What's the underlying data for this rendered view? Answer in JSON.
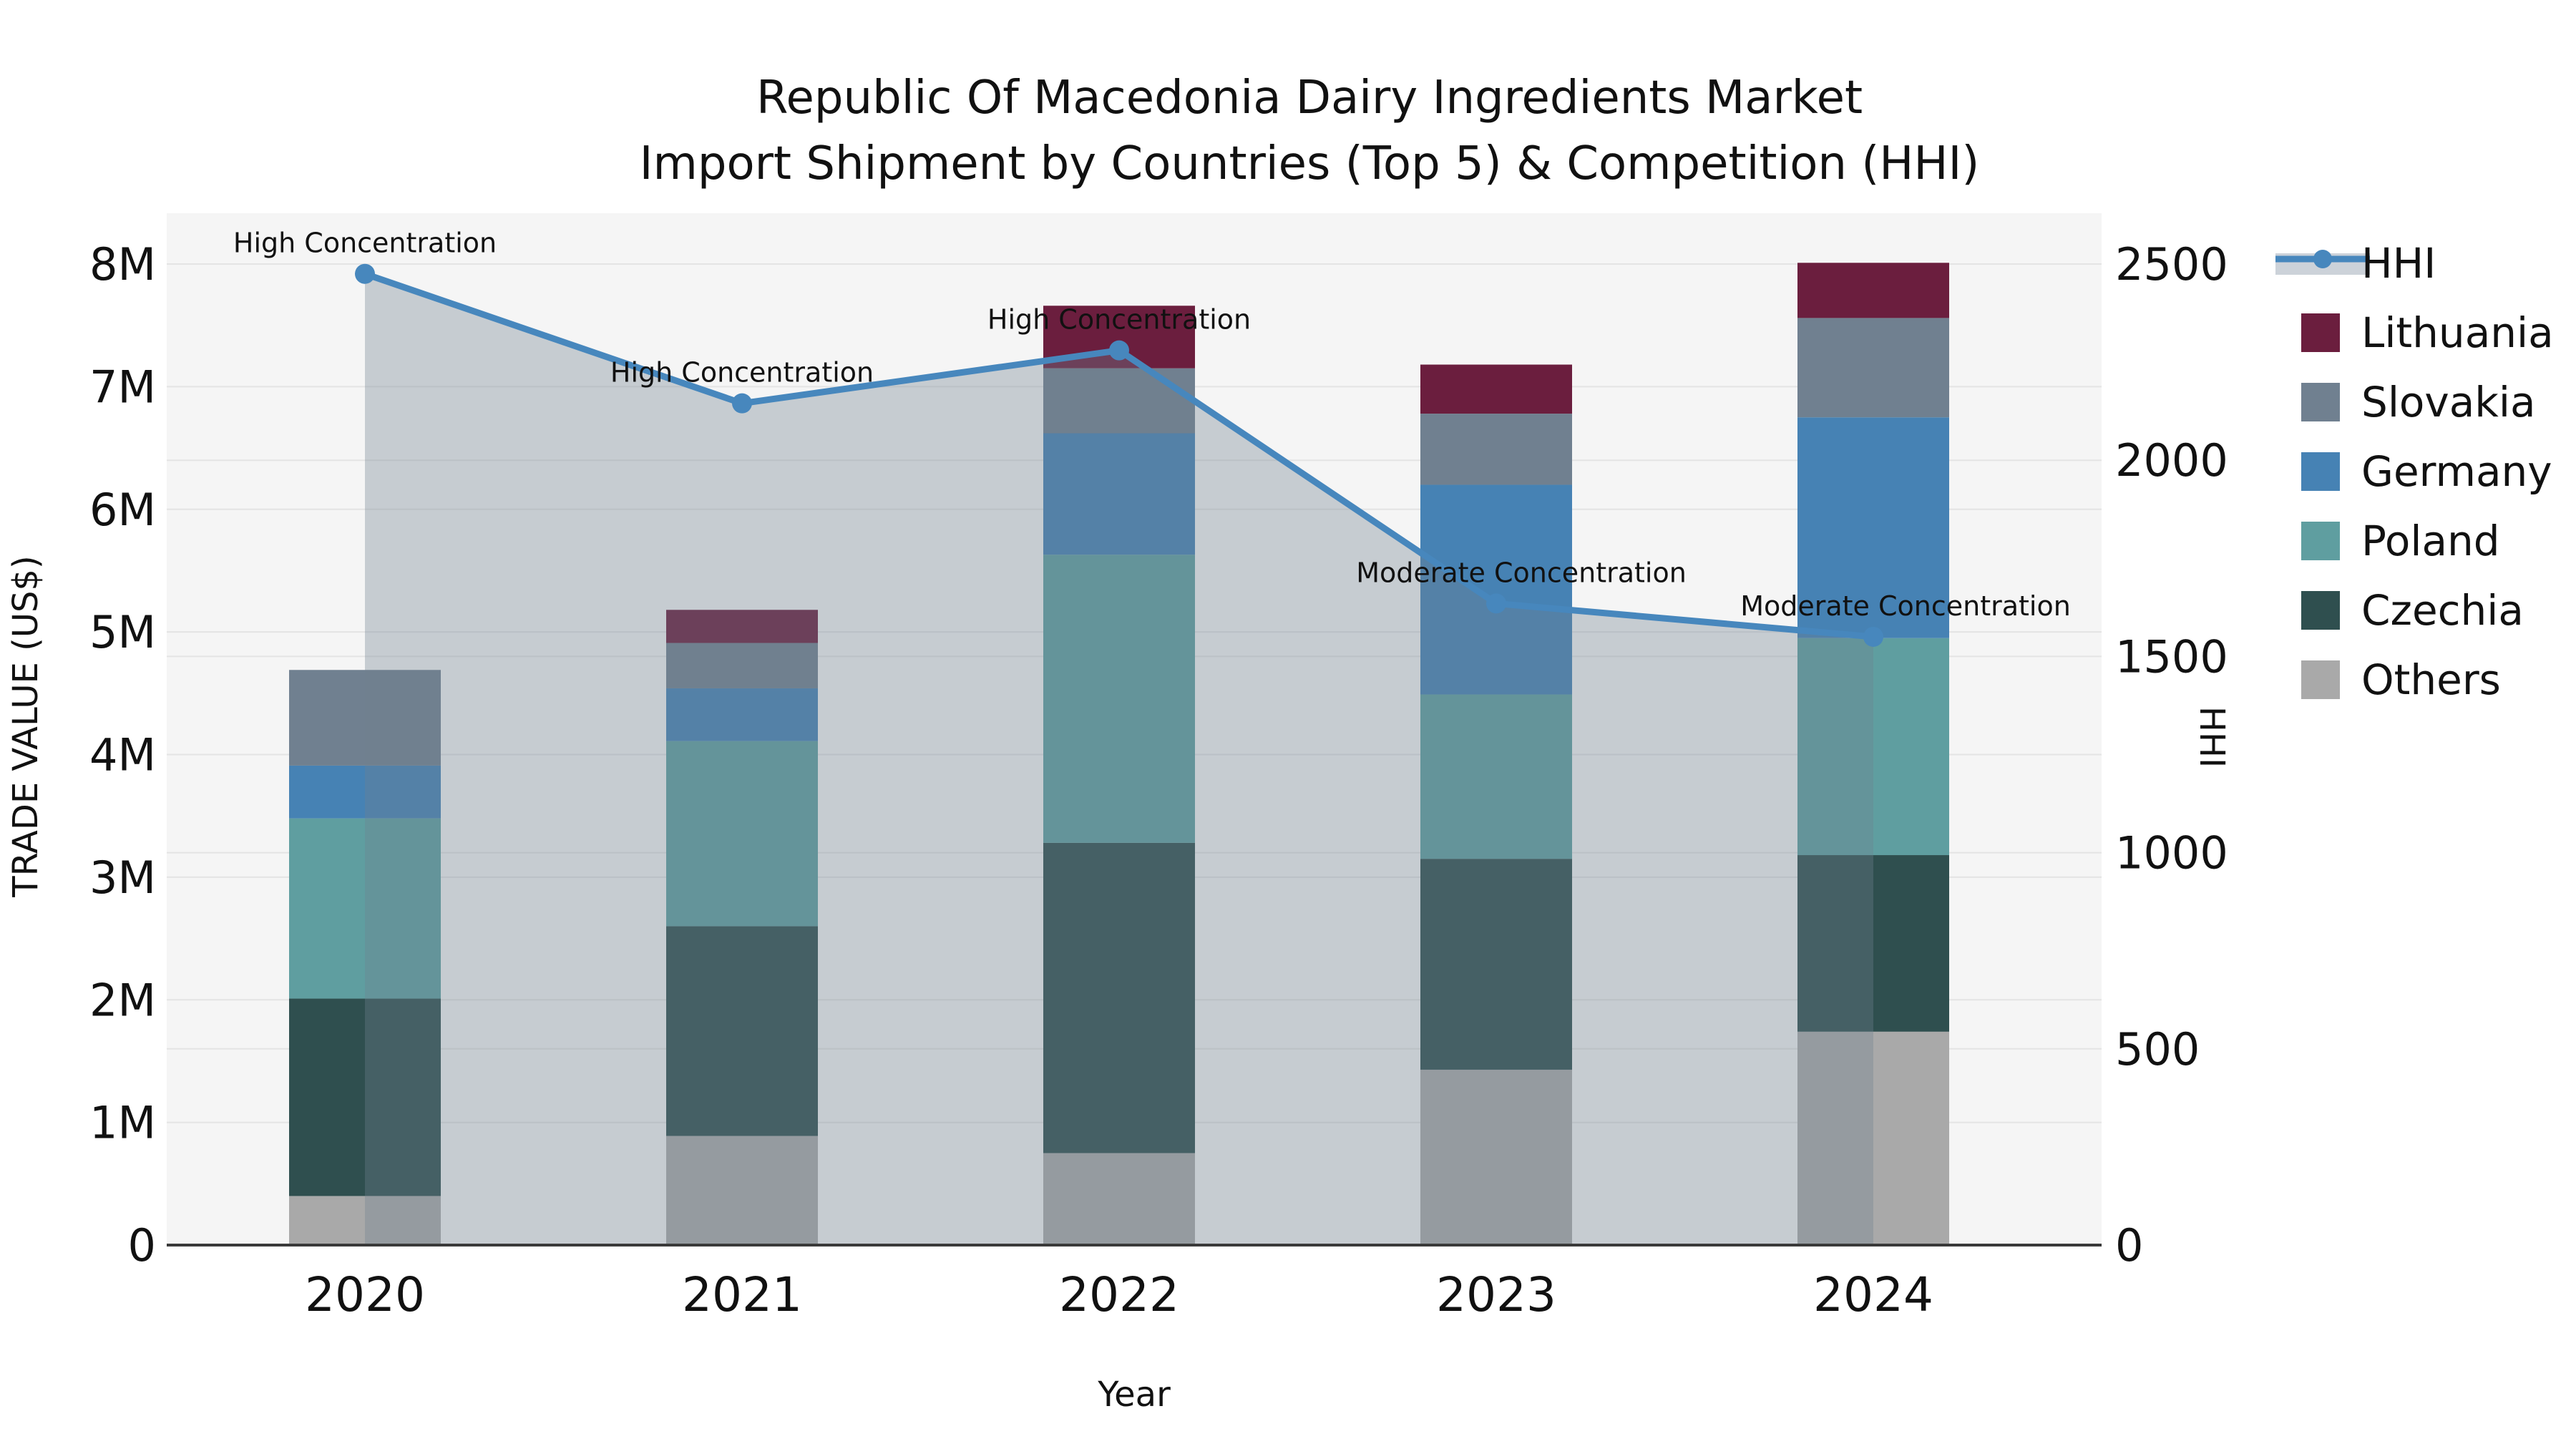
{
  "title": {
    "line1": "Republic Of Macedonia Dairy Ingredients Market",
    "line2": "Import Shipment by Countries (Top 5) & Competition (HHI)"
  },
  "y_left_axis": {
    "label": "TRADE VALUE (US$)",
    "tick_labels": [
      "0",
      "1M",
      "2M",
      "3M",
      "4M",
      "5M",
      "6M",
      "7M",
      "8M"
    ]
  },
  "y_right_axis": {
    "label": "HHI",
    "tick_labels": [
      "0",
      "500",
      "1000",
      "1500",
      "2000",
      "2500"
    ]
  },
  "x_axis": {
    "label": "Year",
    "categories": [
      "2020",
      "2021",
      "2022",
      "2023",
      "2024"
    ]
  },
  "legend": {
    "items": [
      {
        "label": "HHI",
        "type": "line",
        "color": "#4787bd",
        "band_color": "#ccd2d9"
      },
      {
        "label": "Lithuania",
        "type": "square",
        "color": "#6b1e3e"
      },
      {
        "label": "Slovakia",
        "type": "square",
        "color": "#708090"
      },
      {
        "label": "Germany",
        "type": "square",
        "color": "#4682b4"
      },
      {
        "label": "Poland",
        "type": "square",
        "color": "#5f9ea0"
      },
      {
        "label": "Czechia",
        "type": "square",
        "color": "#2f4f4f"
      },
      {
        "label": "Others",
        "type": "square",
        "color": "#a9a9a9"
      }
    ]
  },
  "annotations": [
    {
      "year": "2020",
      "text": "High Concentration"
    },
    {
      "year": "2021",
      "text": "High Concentration"
    },
    {
      "year": "2022",
      "text": "High Concentration"
    },
    {
      "year": "2023",
      "text": "Moderate Concentration"
    },
    {
      "year": "2024",
      "text": "Moderate Concentration"
    }
  ],
  "chart_data": {
    "type": "bar+line",
    "title": "Republic Of Macedonia Dairy Ingredients Market — Import Shipment by Countries (Top 5) & Competition (HHI)",
    "categories": [
      "2020",
      "2021",
      "2022",
      "2023",
      "2024"
    ],
    "bar_unit": "US$ millions",
    "stack_order_bottom_to_top": [
      "Others",
      "Czechia",
      "Poland",
      "Germany",
      "Slovakia",
      "Lithuania"
    ],
    "series": [
      {
        "name": "Others",
        "color": "#a9a9a9",
        "values": [
          0.4,
          0.89,
          0.75,
          1.43,
          1.74
        ]
      },
      {
        "name": "Czechia",
        "color": "#2f4f4f",
        "values": [
          1.61,
          1.71,
          2.53,
          1.72,
          1.44
        ]
      },
      {
        "name": "Poland",
        "color": "#5f9ea0",
        "values": [
          1.47,
          1.51,
          2.35,
          1.34,
          1.77
        ]
      },
      {
        "name": "Germany",
        "color": "#4682b4",
        "values": [
          0.43,
          0.43,
          0.99,
          1.71,
          1.8
        ]
      },
      {
        "name": "Slovakia",
        "color": "#708090",
        "values": [
          0.78,
          0.37,
          0.53,
          0.58,
          0.81
        ]
      },
      {
        "name": "Lithuania",
        "color": "#6b1e3e",
        "values": [
          0.0,
          0.27,
          0.51,
          0.4,
          0.45
        ]
      }
    ],
    "bar_totals": [
      4.69,
      5.18,
      7.66,
      7.18,
      8.01
    ],
    "line_series": {
      "name": "HHI",
      "color": "#4787bd",
      "fill_color": "rgba(112,128,144,0.35)",
      "values": [
        2475,
        2145,
        2280,
        1635,
        1550
      ]
    },
    "xlabel": "Year",
    "ylabel_left": "TRADE VALUE (US$)",
    "ylabel_right": "HHI",
    "ylim_left_millions": [
      0,
      8
    ],
    "ylim_right": [
      0,
      2500
    ],
    "grid": true,
    "legend_position": "right"
  }
}
